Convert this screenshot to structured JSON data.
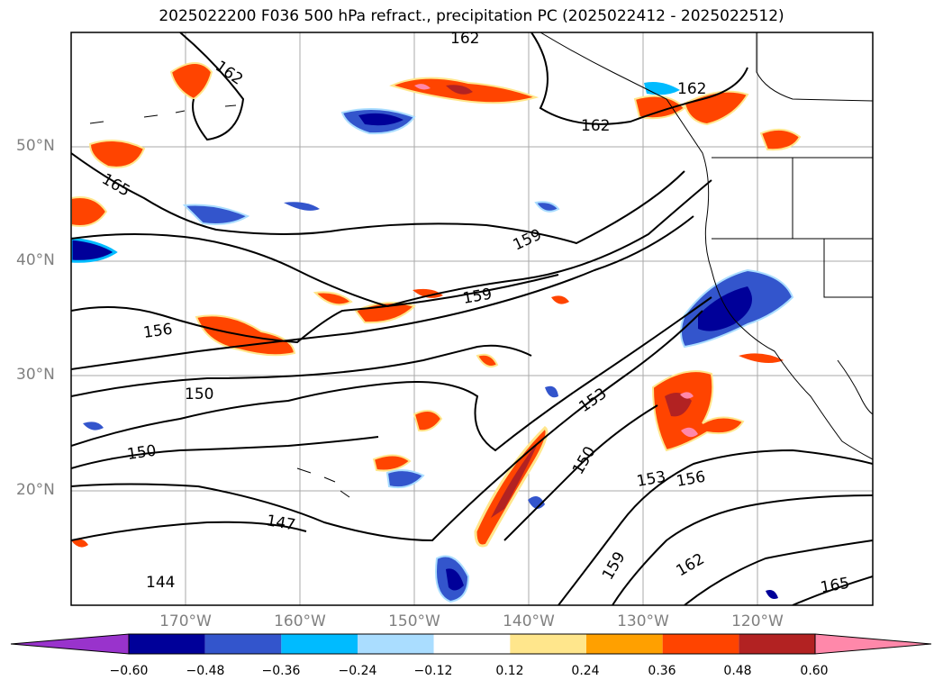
{
  "title": "2025022200 F036 500 hPa refract., precipitation PC (2025022412 - 2025022512)",
  "lat_labels": [
    "50°N",
    "40°N",
    "30°N",
    "20°N"
  ],
  "lon_labels": [
    "170°W",
    "160°W",
    "150°W",
    "140°W",
    "130°W",
    "120°W"
  ],
  "contour_labels": [
    "162",
    "162",
    "162",
    "162",
    "165",
    "159",
    "159",
    "156",
    "153",
    "150",
    "150",
    "150",
    "147",
    "144",
    "153",
    "156",
    "159",
    "162",
    "165"
  ],
  "colorbar": {
    "ticks": [
      "−0.60",
      "−0.48",
      "−0.36",
      "−0.24",
      "−0.12",
      "0.12",
      "0.24",
      "0.36",
      "0.48",
      "0.60"
    ],
    "colors": [
      "#9933cc",
      "#000099",
      "#3355cc",
      "#00bbff",
      "#aaddff",
      "#ffffff",
      "#ffe68c",
      "#ffa000",
      "#ff4400",
      "#b22222",
      "#ff88aa"
    ]
  }
}
